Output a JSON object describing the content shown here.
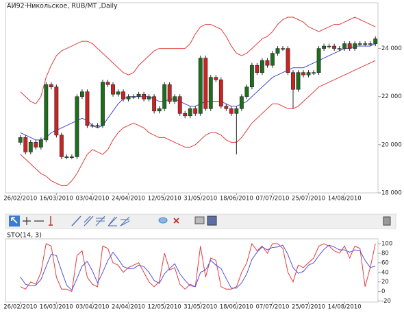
{
  "chart_data": [
    {
      "type": "candlestick",
      "title": "АИ92-Никольское,  RUB/MT ,Daily",
      "categories": [
        "26/02/2010",
        null,
        null,
        null,
        null,
        null,
        null,
        "16/03/2010",
        null,
        null,
        null,
        null,
        null,
        null,
        "03/04/2010",
        null,
        null,
        null,
        null,
        null,
        null,
        "24/04/2010",
        null,
        null,
        null,
        null,
        null,
        null,
        "12/05/2010",
        null,
        null,
        null,
        null,
        null,
        null,
        "31/05/2010",
        null,
        null,
        null,
        null,
        null,
        null,
        "18/06/2010",
        null,
        null,
        null,
        null,
        null,
        null,
        "07/07/2010",
        null,
        null,
        null,
        null,
        null,
        null,
        "25/07/2010",
        null,
        null,
        null,
        null,
        null,
        null,
        "14/08/2010",
        null,
        null,
        null,
        null,
        null,
        null
      ],
      "open": [
        20100,
        20300,
        19700,
        20100,
        19900,
        20200,
        22500,
        22400,
        20400,
        19500,
        19500,
        19500,
        22000,
        22200,
        20800,
        20800,
        20800,
        22600,
        22500,
        22100,
        22200,
        21900,
        22000,
        22000,
        22100,
        21900,
        22000,
        21400,
        21500,
        22500,
        21800,
        22000,
        21300,
        21200,
        21500,
        21300,
        23600,
        21500,
        22800,
        22700,
        21600,
        21500,
        21300,
        21500,
        22000,
        22400,
        23300,
        23000,
        23500,
        23300,
        23800,
        24000,
        24000,
        23000,
        22300,
        23000,
        22900,
        23000,
        23000,
        24000,
        24100,
        24100,
        24000,
        24000,
        24200,
        24000,
        24200,
        24200,
        24200,
        24200
      ],
      "high": [
        20400,
        20400,
        20200,
        20200,
        20300,
        22600,
        22600,
        22500,
        20500,
        19600,
        19600,
        22100,
        22300,
        22300,
        20900,
        20900,
        22700,
        22700,
        22600,
        22300,
        22300,
        22100,
        22100,
        22200,
        22200,
        22100,
        22100,
        21600,
        22600,
        22600,
        22100,
        22100,
        21400,
        21600,
        21600,
        23700,
        23700,
        22900,
        22900,
        22800,
        21700,
        21600,
        21600,
        22100,
        22500,
        23400,
        23400,
        23600,
        23600,
        23900,
        24100,
        24100,
        24100,
        23100,
        23100,
        23100,
        23100,
        23100,
        24100,
        24200,
        24200,
        24200,
        24100,
        24300,
        24300,
        24300,
        24300,
        24300,
        24300,
        24500
      ],
      "low": [
        20000,
        19600,
        19600,
        19800,
        19800,
        20100,
        22300,
        20300,
        19400,
        19400,
        19400,
        19400,
        21900,
        20700,
        20700,
        20700,
        20700,
        22400,
        22000,
        22000,
        21800,
        21800,
        21900,
        21900,
        21800,
        21800,
        21300,
        21300,
        21400,
        21700,
        21700,
        21200,
        21100,
        21100,
        21200,
        21200,
        21400,
        21400,
        22600,
        21500,
        21400,
        21200,
        19600,
        21400,
        21900,
        22300,
        22900,
        22900,
        23200,
        23200,
        23700,
        23900,
        22900,
        21500,
        22200,
        22800,
        22800,
        22900,
        22900,
        23900,
        24000,
        23900,
        23900,
        23900,
        23900,
        23900,
        24100,
        24100,
        24100,
        24100
      ],
      "close": [
        20300,
        19700,
        20100,
        19900,
        20200,
        22500,
        22400,
        20400,
        19500,
        19500,
        19500,
        22000,
        22200,
        20800,
        20800,
        20800,
        22600,
        22500,
        22100,
        22200,
        21900,
        22000,
        22000,
        22100,
        21900,
        22000,
        21400,
        21500,
        22500,
        21800,
        22000,
        21300,
        21200,
        21500,
        21300,
        23600,
        21500,
        22800,
        22700,
        21600,
        21500,
        21300,
        21500,
        22000,
        22400,
        23300,
        23000,
        23500,
        23300,
        23800,
        24000,
        24000,
        23000,
        22300,
        23000,
        22900,
        23000,
        23000,
        24000,
        24100,
        24100,
        24000,
        24000,
        24200,
        24000,
        24200,
        24200,
        24200,
        24200,
        24400
      ],
      "up_color": "#1e6e1e",
      "down_color": "#cc2222",
      "overlays": [
        {
          "color": "#e03c3c",
          "values": [
            22200,
            22000,
            21800,
            21700,
            22000,
            22800,
            23300,
            23700,
            23900,
            24000,
            24100,
            24200,
            24300,
            24300,
            24200,
            24000,
            23800,
            23600,
            23400,
            23200,
            23000,
            22900,
            23000,
            23300,
            23500,
            23700,
            23900,
            24000,
            24000,
            24000,
            24000,
            24000,
            24000,
            24200,
            24600,
            24900,
            25000,
            25000,
            24900,
            24800,
            24500,
            24100,
            23800,
            23700,
            23800,
            24000,
            24200,
            24400,
            24500,
            24700,
            25000,
            25200,
            25300,
            25300,
            25200,
            25100,
            24900,
            24800,
            24700,
            24800,
            24900,
            25000,
            25000,
            25100,
            25200,
            25300,
            25200,
            25100,
            25000,
            24900
          ]
        },
        {
          "color": "#4444d8",
          "values": [
            20500,
            20400,
            20300,
            20200,
            20200,
            20300,
            20500,
            20600,
            20700,
            20800,
            20900,
            21000,
            21100,
            21000,
            20800,
            20700,
            20800,
            21100,
            21400,
            21700,
            21900,
            22000,
            22000,
            22000,
            22000,
            22000,
            21900,
            21800,
            21800,
            21900,
            21900,
            21800,
            21700,
            21600,
            21600,
            21700,
            21800,
            21800,
            21800,
            21800,
            21700,
            21600,
            21600,
            21700,
            21800,
            22000,
            22200,
            22400,
            22600,
            22800,
            22900,
            23000,
            23100,
            23200,
            23200,
            23200,
            23300,
            23400,
            23500,
            23600,
            23700,
            23800,
            23900,
            24000,
            24000,
            24100,
            24100,
            24100,
            24100,
            24200
          ]
        },
        {
          "color": "#e03c3c",
          "values": [
            19600,
            19400,
            19200,
            19000,
            18800,
            18700,
            18500,
            18400,
            18300,
            18300,
            18500,
            18800,
            19200,
            19600,
            19800,
            19700,
            19600,
            19800,
            20200,
            20500,
            20700,
            20800,
            20900,
            20800,
            20700,
            20500,
            20400,
            20300,
            20300,
            20200,
            20100,
            20000,
            19900,
            19900,
            20000,
            20200,
            20400,
            20500,
            20500,
            20400,
            20200,
            20100,
            20100,
            20300,
            20600,
            20900,
            21100,
            21300,
            21500,
            21700,
            21700,
            21600,
            21500,
            21500,
            21600,
            21800,
            22000,
            22200,
            22400,
            22500,
            22600,
            22700,
            22800,
            22900,
            23000,
            23100,
            23200,
            23300,
            23400,
            23500
          ]
        }
      ],
      "ylim": [
        18000,
        25900
      ],
      "yticks": [
        {
          "value": 18000,
          "label": "18 000"
        },
        {
          "value": 20000,
          "label": "20 000"
        },
        {
          "value": 22000,
          "label": "22 000"
        },
        {
          "value": 24000,
          "label": "24 000"
        }
      ],
      "grid": false
    },
    {
      "type": "line",
      "title": "STO(14, 3)",
      "categories": [
        "26/02/2010",
        null,
        null,
        null,
        null,
        null,
        null,
        "16/03/2010",
        null,
        null,
        null,
        null,
        null,
        null,
        "03/04/2010",
        null,
        null,
        null,
        null,
        null,
        null,
        "24/04/2010",
        null,
        null,
        null,
        null,
        null,
        null,
        "12/05/2010",
        null,
        null,
        null,
        null,
        null,
        null,
        "31/05/2010",
        null,
        null,
        null,
        null,
        null,
        null,
        "18/06/2010",
        null,
        null,
        null,
        null,
        null,
        null,
        "07/07/2010",
        null,
        null,
        null,
        null,
        null,
        null,
        "25/07/2010",
        null,
        null,
        null,
        null,
        null,
        null,
        "14/08/2010",
        null,
        null,
        null,
        null,
        null,
        null
      ],
      "series": [
        {
          "color": "#e83a3a",
          "values": [
            10,
            5,
            20,
            15,
            40,
            100,
            95,
            30,
            5,
            5,
            0,
            75,
            85,
            30,
            15,
            10,
            95,
            90,
            60,
            55,
            40,
            50,
            55,
            60,
            40,
            20,
            10,
            20,
            80,
            45,
            50,
            15,
            5,
            15,
            10,
            95,
            30,
            70,
            65,
            10,
            5,
            5,
            10,
            40,
            60,
            100,
            85,
            95,
            80,
            100,
            100,
            90,
            40,
            20,
            55,
            50,
            60,
            70,
            95,
            100,
            95,
            85,
            80,
            95,
            70,
            95,
            90,
            10,
            50,
            100
          ]
        },
        {
          "color": "#5050e0",
          "values": [
            30,
            15,
            12,
            13,
            25,
            52,
            78,
            75,
            43,
            13,
            3,
            27,
            53,
            63,
            43,
            18,
            40,
            65,
            82,
            68,
            52,
            48,
            48,
            55,
            52,
            40,
            23,
            17,
            37,
            48,
            58,
            37,
            23,
            12,
            10,
            40,
            45,
            65,
            55,
            48,
            27,
            7,
            7,
            18,
            37,
            67,
            82,
            93,
            87,
            92,
            93,
            97,
            77,
            50,
            38,
            42,
            55,
            60,
            75,
            88,
            97,
            93,
            87,
            87,
            82,
            87,
            85,
            65,
            50,
            53
          ]
        }
      ],
      "ylim": [
        -22,
        110
      ],
      "yticks": [
        100,
        80,
        60,
        40,
        20,
        0,
        -20
      ],
      "grid": false
    }
  ]
}
